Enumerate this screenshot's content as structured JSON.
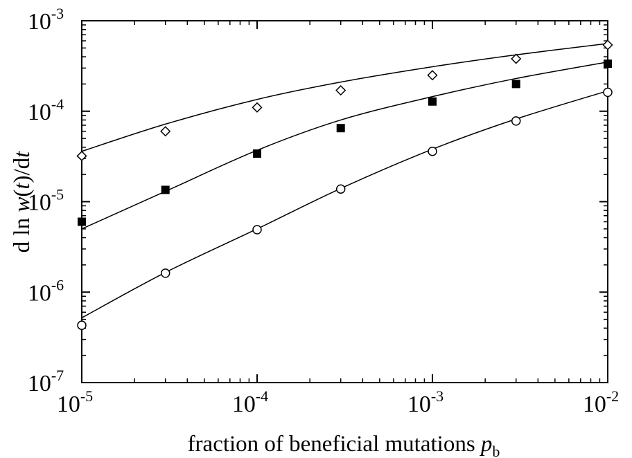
{
  "chart_data": {
    "type": "scatter",
    "xscale": "log",
    "yscale": "log",
    "xlim": [
      1e-05,
      0.01
    ],
    "ylim": [
      1e-07,
      0.001
    ],
    "x_ticks": [
      {
        "mantissa": "10",
        "exp": "-5",
        "value": 1e-05
      },
      {
        "mantissa": "10",
        "exp": "-4",
        "value": 0.0001
      },
      {
        "mantissa": "10",
        "exp": "-3",
        "value": 0.001
      },
      {
        "mantissa": "10",
        "exp": "-2",
        "value": 0.01
      }
    ],
    "y_ticks": [
      {
        "mantissa": "10",
        "exp": "-7",
        "value": 1e-07
      },
      {
        "mantissa": "10",
        "exp": "-6",
        "value": 1e-06
      },
      {
        "mantissa": "10",
        "exp": "-5",
        "value": 1e-05
      },
      {
        "mantissa": "10",
        "exp": "-4",
        "value": 0.0001
      },
      {
        "mantissa": "10",
        "exp": "-3",
        "value": 0.001
      }
    ],
    "xlabel": {
      "text": "fraction of beneficial mutations ",
      "var": "p",
      "sub": "b"
    },
    "ylabel": {
      "pre": "d ln ",
      "w": "w",
      "open": "(",
      "t1": "t",
      "close": ")/d",
      "t2": "t"
    },
    "grid": false,
    "x": [
      1e-05,
      3e-05,
      0.0001,
      0.0003,
      0.001,
      0.003,
      0.01
    ],
    "series": [
      {
        "marker": "diamond",
        "values": [
          3.2e-05,
          6e-05,
          0.00011,
          0.00017,
          0.00025,
          0.00038,
          0.00054
        ],
        "fit": [
          3.6e-05,
          7.2e-05,
          0.000135,
          0.00021,
          0.00031,
          0.00042,
          0.00056
        ]
      },
      {
        "marker": "square",
        "values": [
          6e-06,
          1.35e-05,
          3.4e-05,
          6.5e-05,
          0.000128,
          0.0002,
          0.000335
        ],
        "fit": [
          5e-06,
          1.3e-05,
          3.7e-05,
          8e-05,
          0.000145,
          0.00023,
          0.00035
        ]
      },
      {
        "marker": "circle",
        "values": [
          4.3e-07,
          1.62e-06,
          4.9e-06,
          1.38e-05,
          3.6e-05,
          7.8e-05,
          0.000162
        ],
        "fit": [
          5.2e-07,
          1.65e-06,
          5e-06,
          1.4e-05,
          3.8e-05,
          8.2e-05,
          0.000168
        ]
      }
    ]
  }
}
